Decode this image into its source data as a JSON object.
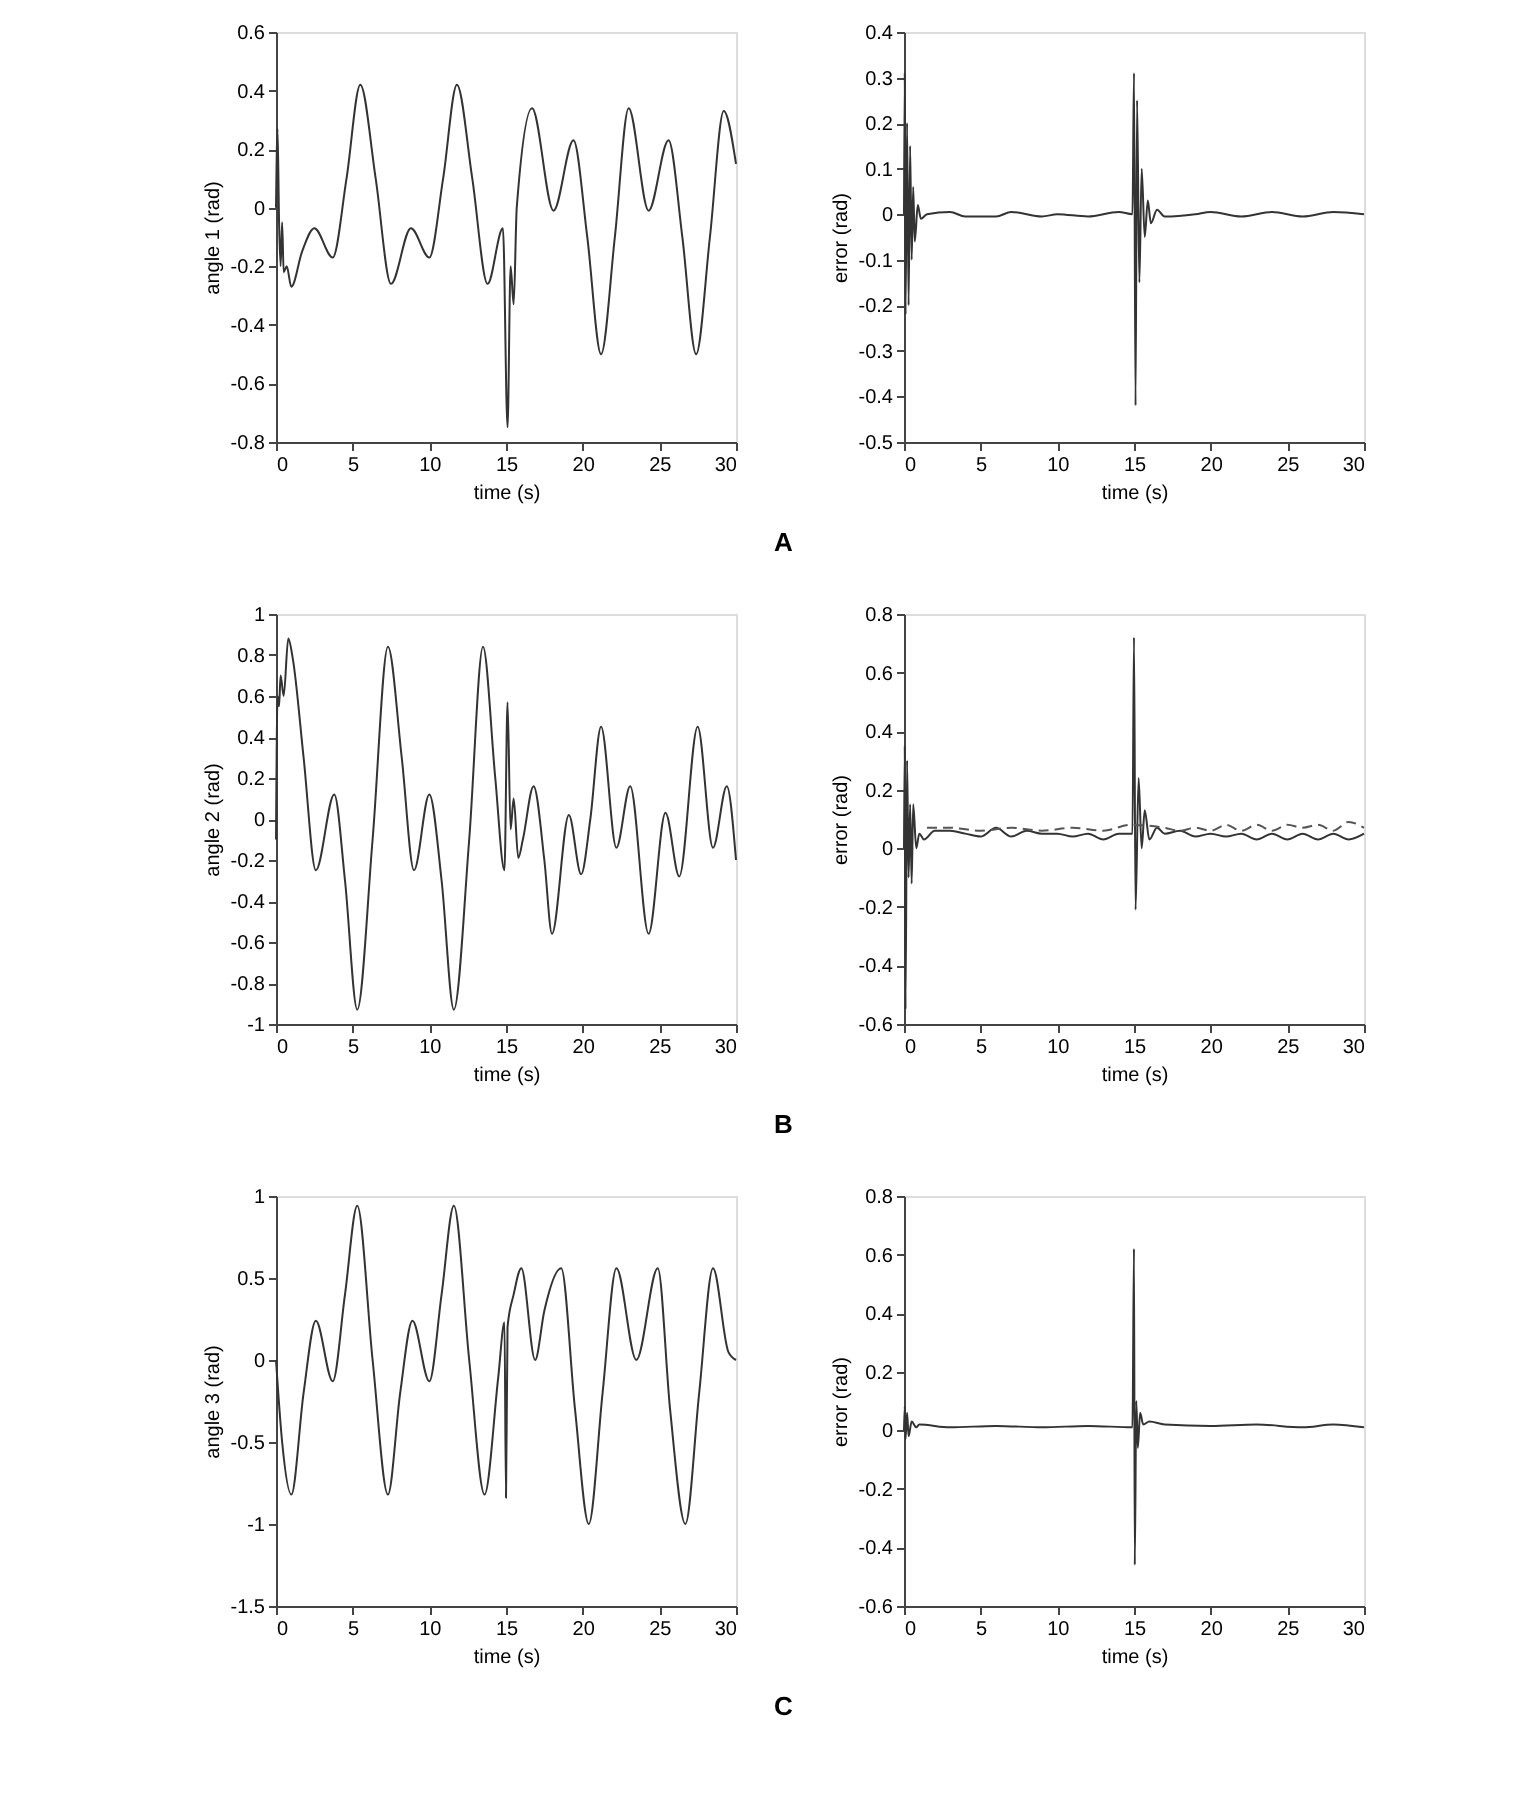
{
  "chart_data": [
    {
      "type": "line",
      "xlabel": "time (s)",
      "ylabel": "angle 1 (rad)",
      "annotations": [
        "A"
      ],
      "xlim": [
        0,
        30
      ],
      "xticks": [
        0,
        5,
        10,
        15,
        20,
        25,
        30
      ],
      "ylim": [
        -0.8,
        0.6
      ],
      "yticks": [
        -0.8,
        -0.6,
        -0.4,
        -0.2,
        0,
        0.2,
        0.4,
        0.6
      ],
      "grid": false,
      "series": [
        {
          "color": "#333333",
          "x": [
            0,
            0.1,
            0.2,
            0.3,
            0.4,
            0.5,
            0.7,
            1,
            1.7,
            2.5,
            3.7,
            4.6,
            5.5,
            6.5,
            7.5,
            8.8,
            10,
            10.9,
            11.8,
            12.8,
            13.8,
            14.8,
            15.1,
            15.3,
            15.5,
            15.7,
            16.7,
            18.1,
            19.4,
            20.3,
            21.2,
            22.1,
            23,
            24.3,
            25.6,
            26.5,
            27.4,
            28.3,
            29.2,
            30
          ],
          "values": [
            0,
            0.27,
            -0.05,
            -0.2,
            -0.05,
            -0.22,
            -0.2,
            -0.27,
            -0.15,
            -0.07,
            -0.17,
            0.1,
            0.42,
            0.1,
            -0.26,
            -0.07,
            -0.17,
            0.1,
            0.42,
            0.1,
            -0.26,
            -0.07,
            -0.75,
            -0.2,
            -0.33,
            0,
            0.34,
            -0.01,
            0.23,
            -0.1,
            -0.5,
            -0.1,
            0.34,
            -0.01,
            0.23,
            -0.1,
            -0.5,
            -0.1,
            0.33,
            0.15
          ]
        }
      ]
    },
    {
      "type": "line",
      "xlabel": "time (s)",
      "ylabel": "error (rad)",
      "xlim": [
        0,
        30
      ],
      "xticks": [
        0,
        5,
        10,
        15,
        20,
        25,
        30
      ],
      "ylim": [
        -0.5,
        0.4
      ],
      "yticks": [
        -0.5,
        -0.4,
        -0.3,
        -0.2,
        -0.1,
        0,
        0.1,
        0.2,
        0.3,
        0.4
      ],
      "grid": false,
      "series": [
        {
          "color": "#333333",
          "x": [
            0,
            0.05,
            0.1,
            0.2,
            0.3,
            0.4,
            0.5,
            0.6,
            0.7,
            0.9,
            1.1,
            1.5,
            3,
            4,
            6,
            7,
            9,
            10,
            12,
            14,
            14.9,
            15,
            15.1,
            15.2,
            15.35,
            15.5,
            15.7,
            15.9,
            16.1,
            16.5,
            17,
            19,
            20,
            22,
            24,
            26,
            28,
            30
          ],
          "values": [
            0,
            0.31,
            -0.22,
            0.2,
            -0.2,
            0.15,
            -0.1,
            0.06,
            -0.06,
            0.02,
            -0.01,
            0,
            0.005,
            -0.005,
            -0.005,
            0.005,
            -0.005,
            0,
            -0.005,
            0.005,
            0,
            0.31,
            -0.42,
            0.25,
            -0.15,
            0.1,
            -0.05,
            0.03,
            -0.02,
            0.01,
            -0.005,
            0,
            0.005,
            -0.005,
            0.005,
            -0.005,
            0.005,
            0
          ]
        }
      ]
    },
    {
      "type": "line",
      "xlabel": "time (s)",
      "ylabel": "angle 2 (rad)",
      "annotations": [
        "B"
      ],
      "xlim": [
        0,
        30
      ],
      "xticks": [
        0,
        5,
        10,
        15,
        20,
        25,
        30
      ],
      "ylim": [
        -1,
        1
      ],
      "yticks": [
        -1,
        -0.8,
        -0.6,
        -0.4,
        -0.2,
        0,
        0.2,
        0.4,
        0.6,
        0.8,
        1
      ],
      "grid": false,
      "series": [
        {
          "color": "#333333",
          "x": [
            0,
            0.1,
            0.2,
            0.3,
            0.5,
            0.8,
            1.1,
            1.8,
            2.6,
            3.8,
            4.5,
            5.3,
            6.3,
            7.3,
            8.2,
            9,
            10,
            10.8,
            11.6,
            12.6,
            13.5,
            14.3,
            14.9,
            15.1,
            15.3,
            15.5,
            15.8,
            16.1,
            16.8,
            17.5,
            18,
            19.1,
            19.9,
            20.5,
            21.2,
            22.2,
            23.1,
            24.3,
            25.4,
            26.3,
            27.5,
            28.5,
            29.4,
            30
          ],
          "values": [
            -0.1,
            0.6,
            0.55,
            0.7,
            0.6,
            0.88,
            0.78,
            0.3,
            -0.25,
            0.12,
            -0.3,
            -0.93,
            -0.1,
            0.84,
            0.3,
            -0.25,
            0.12,
            -0.3,
            -0.93,
            -0.1,
            0.84,
            0.2,
            -0.25,
            0.57,
            -0.05,
            0.1,
            -0.19,
            -0.1,
            0.16,
            -0.2,
            -0.56,
            0.02,
            -0.27,
            0,
            0.45,
            -0.14,
            0.16,
            -0.56,
            0.03,
            -0.28,
            0.45,
            -0.14,
            0.16,
            -0.2
          ]
        }
      ]
    },
    {
      "type": "line",
      "xlabel": "time (s)",
      "ylabel": "error (rad)",
      "xlim": [
        0,
        30
      ],
      "xticks": [
        0,
        5,
        10,
        15,
        20,
        25,
        30
      ],
      "ylim": [
        -0.6,
        0.8
      ],
      "yticks": [
        -0.6,
        -0.4,
        -0.2,
        0,
        0.2,
        0.4,
        0.6,
        0.8
      ],
      "grid": false,
      "series": [
        {
          "color": "#333333",
          "x": [
            0,
            0.05,
            0.1,
            0.2,
            0.3,
            0.4,
            0.5,
            0.6,
            0.8,
            1,
            1.3,
            2,
            3,
            4,
            5,
            6,
            7,
            8,
            9,
            10,
            11,
            12,
            13,
            14,
            14.9,
            15,
            15.1,
            15.3,
            15.5,
            15.7,
            16,
            16.5,
            17,
            18,
            19,
            20,
            21,
            22,
            23,
            24,
            25,
            26,
            27,
            28,
            29,
            30
          ],
          "values": [
            0,
            0.35,
            -0.55,
            0.3,
            -0.1,
            0.15,
            -0.12,
            0.15,
            0,
            0.05,
            0.03,
            0.06,
            0.06,
            0.05,
            0.04,
            0.07,
            0.04,
            0.06,
            0.05,
            0.05,
            0.04,
            0.05,
            0.03,
            0.05,
            0.05,
            0.72,
            -0.21,
            0.24,
            0,
            0.13,
            0.03,
            0.07,
            0.05,
            0.06,
            0.04,
            0.05,
            0.04,
            0.05,
            0.03,
            0.05,
            0.03,
            0.05,
            0.03,
            0.05,
            0.03,
            0.05
          ]
        },
        {
          "color": "#555555",
          "line_style": "dashed",
          "x": [
            1.5,
            3,
            5,
            7,
            9,
            11,
            13,
            14.8,
            17,
            18,
            19,
            20,
            21,
            22,
            23,
            24,
            25,
            26,
            27,
            28,
            29,
            30
          ],
          "values": [
            0.07,
            0.07,
            0.06,
            0.07,
            0.06,
            0.07,
            0.06,
            0.08,
            0.07,
            0.06,
            0.07,
            0.06,
            0.08,
            0.06,
            0.08,
            0.06,
            0.08,
            0.07,
            0.08,
            0.06,
            0.09,
            0.07
          ]
        }
      ]
    },
    {
      "type": "line",
      "xlabel": "time (s)",
      "ylabel": "angle 3 (rad)",
      "annotations": [
        "C"
      ],
      "xlim": [
        0,
        30
      ],
      "xticks": [
        0,
        5,
        10,
        15,
        20,
        25,
        30
      ],
      "ylim": [
        -1.5,
        1
      ],
      "yticks": [
        -1.5,
        -1,
        -0.5,
        0,
        0.5,
        1
      ],
      "grid": false,
      "series": [
        {
          "color": "#333333",
          "x": [
            0,
            0.4,
            1,
            1.8,
            2.6,
            3.7,
            4.5,
            5.3,
            6.3,
            7.3,
            8.1,
            8.9,
            10,
            10.8,
            11.6,
            12.6,
            13.6,
            14.5,
            14.9,
            15,
            15.1,
            15.5,
            16,
            16.9,
            17.5,
            18.6,
            19.5,
            20.4,
            21.3,
            22.2,
            23.5,
            24.9,
            25.7,
            26.7,
            27.6,
            28.5,
            29.5,
            30
          ],
          "values": [
            0,
            -0.5,
            -0.82,
            -0.2,
            0.24,
            -0.13,
            0.4,
            0.94,
            0,
            -0.82,
            -0.2,
            0.24,
            -0.13,
            0.4,
            0.94,
            0,
            -0.82,
            -0.1,
            0.23,
            -0.84,
            0.2,
            0.4,
            0.56,
            0,
            0.3,
            0.56,
            -0.3,
            -1,
            -0.2,
            0.56,
            0,
            0.56,
            -0.3,
            -1,
            -0.2,
            0.56,
            0.05,
            0
          ]
        }
      ]
    },
    {
      "type": "line",
      "xlabel": "time (s)",
      "ylabel": "error (rad)",
      "xlim": [
        0,
        30
      ],
      "xticks": [
        0,
        5,
        10,
        15,
        20,
        25,
        30
      ],
      "ylim": [
        -0.6,
        0.8
      ],
      "yticks": [
        -0.6,
        -0.4,
        -0.2,
        0,
        0.2,
        0.4,
        0.6,
        0.8
      ],
      "grid": false,
      "series": [
        {
          "color": "#333333",
          "x": [
            0,
            0.05,
            0.1,
            0.2,
            0.3,
            0.5,
            0.8,
            1,
            3,
            6,
            9,
            12,
            14.9,
            15,
            15.05,
            15.15,
            15.25,
            15.4,
            15.6,
            16,
            17,
            20,
            23,
            26,
            28,
            30
          ],
          "values": [
            0,
            0.08,
            -0.03,
            0.06,
            -0.02,
            0.03,
            0.01,
            0.02,
            0.01,
            0.015,
            0.01,
            0.015,
            0.01,
            0.62,
            -0.46,
            0.1,
            -0.06,
            0.06,
            0.02,
            0.03,
            0.02,
            0.015,
            0.02,
            0.01,
            0.02,
            0.01
          ]
        }
      ]
    }
  ]
}
